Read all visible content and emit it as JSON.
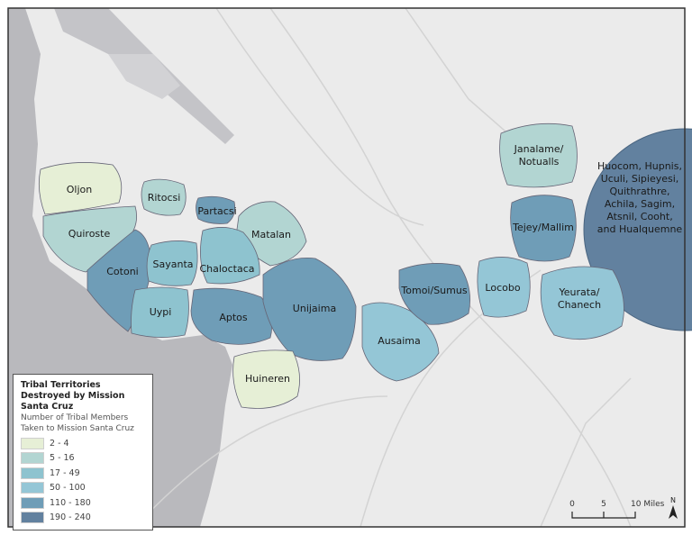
{
  "legend": {
    "title": "Tribal Territories Destroyed by Mission Santa Cruz",
    "subtitle": "Number of Tribal Members Taken to Mission Santa Cruz",
    "classes": [
      {
        "range": "2 - 4",
        "color": "#e6efd6"
      },
      {
        "range": "5 - 16",
        "color": "#b2d5d2"
      },
      {
        "range": "17 - 49",
        "color": "#8ec3cf"
      },
      {
        "range": "50 - 100",
        "color": "#94c6d6"
      },
      {
        "range": "110 - 180",
        "color": "#6f9db7"
      },
      {
        "range": "190 - 240",
        "color": "#62819f"
      }
    ]
  },
  "territories": [
    {
      "name": "Oljon",
      "class": 0
    },
    {
      "name": "Ritocsi",
      "class": 1
    },
    {
      "name": "Partacsi",
      "class": 4
    },
    {
      "name": "Matalan",
      "class": 1
    },
    {
      "name": "Quiroste",
      "class": 1
    },
    {
      "name": "Cotoni",
      "class": 4
    },
    {
      "name": "Sayanta",
      "class": 2
    },
    {
      "name": "Chaloctaca",
      "class": 2
    },
    {
      "name": "Uypi",
      "class": 2
    },
    {
      "name": "Aptos",
      "class": 4
    },
    {
      "name": "Unijaima",
      "class": 4
    },
    {
      "name": "Huineren",
      "class": 0
    },
    {
      "name": "Ausaima",
      "class": 3
    },
    {
      "name": "Tomoi/Sumus",
      "class": 4
    },
    {
      "name": "Locobo",
      "class": 3
    },
    {
      "name": "Janalame/ Notualls",
      "class": 1
    },
    {
      "name": "Tejey/Mallim",
      "class": 4
    },
    {
      "name": "Yeurata/ Chanech",
      "class": 3
    },
    {
      "name": "Huocom, Hupnis, Uculi, Sipieyesi, Quithrathre, Achila, Sagim, Atsnil, Cooht, and Hualquemne",
      "class": 5
    }
  ],
  "scale_bar": {
    "ticks": [
      "0",
      "5",
      "10 Miles"
    ]
  },
  "north_arrow": {
    "label": "N"
  },
  "colors": {
    "land": "#ebebeb",
    "water": "#b9b9bd",
    "roads": "#d6d6d6"
  }
}
